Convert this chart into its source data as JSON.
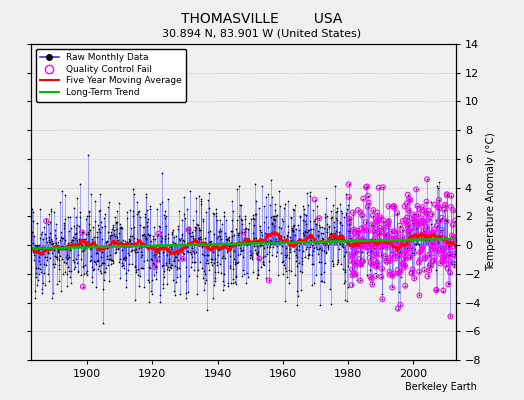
{
  "title": "THOMASVILLE        USA",
  "subtitle": "30.894 N, 83.901 W (United States)",
  "ylabel": "Temperature Anomaly (°C)",
  "attribution": "Berkeley Earth",
  "xlim": [
    1883,
    2013
  ],
  "ylim": [
    -8,
    14
  ],
  "yticks": [
    -8,
    -6,
    -4,
    -2,
    0,
    2,
    4,
    6,
    8,
    10,
    12,
    14
  ],
  "xticks": [
    1900,
    1920,
    1940,
    1960,
    1980,
    2000
  ],
  "bg_color": "#f0f0f0",
  "plot_bg_color": "#f0f0f0",
  "raw_line_color": "#3333ff",
  "raw_marker_color": "#000000",
  "qc_fail_color": "#ff00ff",
  "moving_avg_color": "#ff0000",
  "trend_color": "#00bb00",
  "seed": 42,
  "n_months": 1560,
  "start_year": 1883.0,
  "end_year": 2013.0
}
